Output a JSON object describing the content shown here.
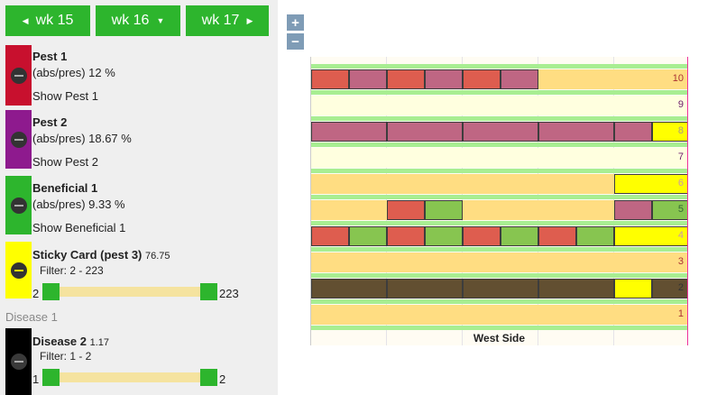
{
  "weeks": [
    {
      "label": "wk 15",
      "arrow": "◀"
    },
    {
      "label": "wk 16",
      "arrow": "▼"
    },
    {
      "label": "wk 17",
      "arrow": "▶"
    }
  ],
  "layers": [
    {
      "name": "Pest 1",
      "stat": "(abs/pres) 12 %",
      "toggle": "Show Pest 1",
      "color": "#c8102e"
    },
    {
      "name": "Pest 2",
      "stat": "(abs/pres) 18.67 %",
      "toggle": "Show Pest 2",
      "color": "#8e1a8e"
    },
    {
      "name": "Beneficial 1",
      "stat": "(abs/pres) 9.33 %",
      "toggle": "Show Beneficial 1",
      "color": "#2db52d"
    }
  ],
  "sticky": {
    "name": "Sticky Card (pest 3)",
    "value": "76.75",
    "filter": "Filter: 2 - 223",
    "min": "2",
    "max": "223",
    "color": "#ffff00"
  },
  "disease1": {
    "label": "Disease 1"
  },
  "disease2": {
    "name": "Disease 2",
    "value": "1.17",
    "filter": "Filter: 1 - 2",
    "min": "1",
    "max": "2",
    "color": "#000000"
  },
  "zoom": {
    "in": "+",
    "out": "−"
  },
  "map": {
    "title": "West Side",
    "rows": [
      "10",
      "9",
      "8",
      "7",
      "6",
      "5",
      "4",
      "3",
      "2",
      "1"
    ],
    "colors": {
      "pest1": "#de5d4f",
      "pest2": "#bf6683",
      "beneficial": "#87c550",
      "sticky": "#ffff00",
      "disease": "#624f31",
      "pale": "#ffdd82",
      "cream": "#ffffdf",
      "green_line": "#a8ee92"
    }
  }
}
